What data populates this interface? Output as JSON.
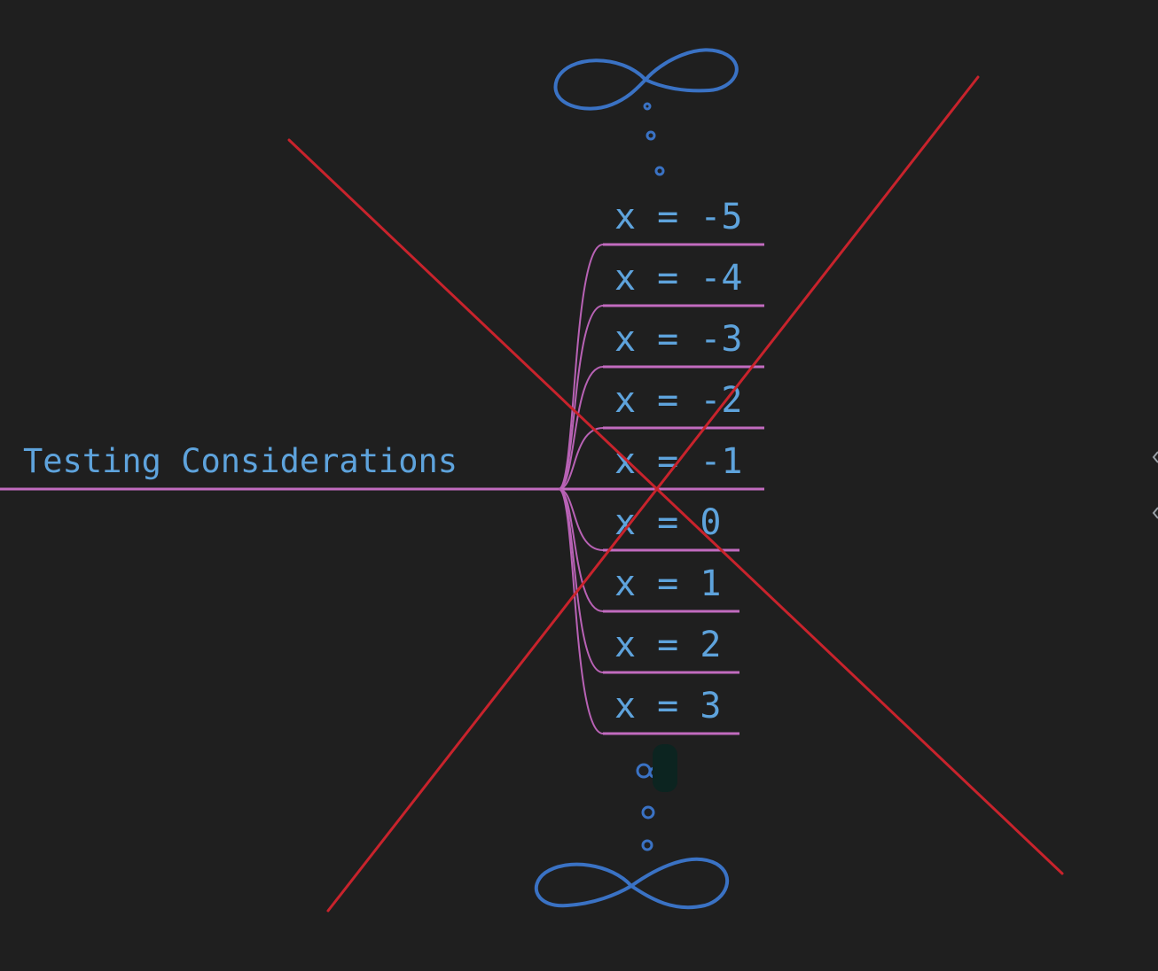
{
  "mindmap": {
    "root": {
      "label": "Testing Considerations"
    },
    "children": [
      {
        "label": "x = -5"
      },
      {
        "label": "x = -4"
      },
      {
        "label": "x = -3"
      },
      {
        "label": "x = -2"
      },
      {
        "label": "x = -1"
      },
      {
        "label": "x = 0"
      },
      {
        "label": "x = 1"
      },
      {
        "label": "x = 2"
      },
      {
        "label": "x = 3"
      }
    ]
  },
  "annotations": {
    "top_symbol": "infinity-icon",
    "bottom_symbol": "infinity-icon",
    "cross_out": "x-cross-mark"
  },
  "colors": {
    "background": "#1f1f1f",
    "text": "#5ea3dc",
    "branch": "#c26bbf",
    "ink": "#3a72c4",
    "cross": "#c8232c"
  }
}
